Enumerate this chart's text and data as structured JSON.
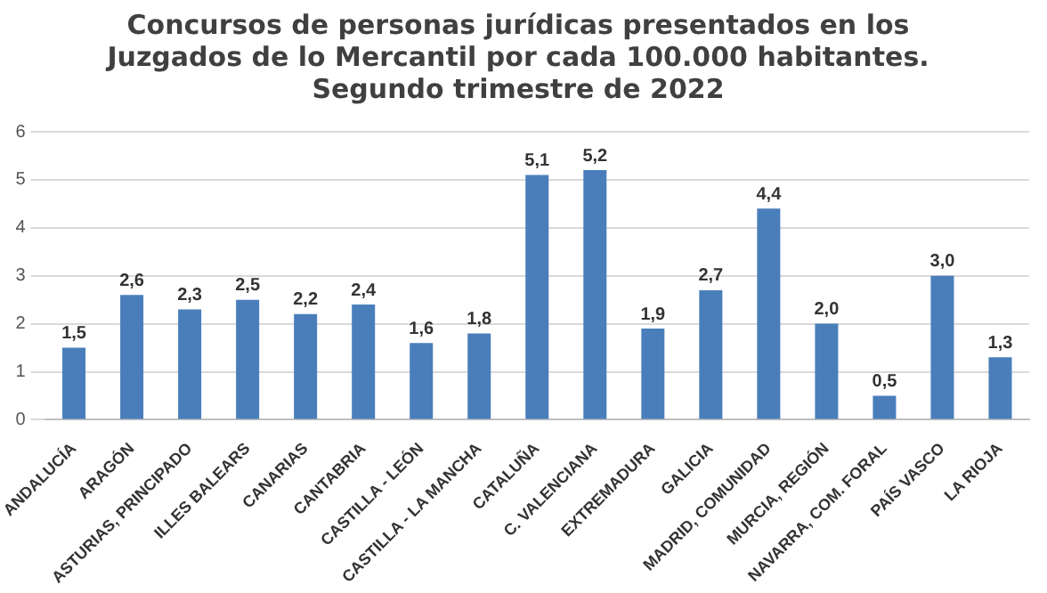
{
  "chart_data": {
    "type": "bar",
    "title": [
      "Concursos de personas jurídicas presentados en los",
      "Juzgados de lo Mercantil por cada 100.000 habitantes.",
      "Segundo trimestre de 2022"
    ],
    "categories": [
      "ANDALUCÍA",
      "ARAGÓN",
      "ASTURIAS, PRINCIPADO",
      "ILLES BALEARS",
      "CANARIAS",
      "CANTABRIA",
      "CASTILLA - LEÓN",
      "CASTILLA - LA MANCHA",
      "CATALUÑA",
      "C. VALENCIANA",
      "EXTREMADURA",
      "GALICIA",
      "MADRID, COMUNIDAD",
      "MURCIA, REGIÓN",
      "NAVARRA, COM. FORAL",
      "PAÍS VASCO",
      "LA RIOJA"
    ],
    "values": [
      1.5,
      2.6,
      2.3,
      2.5,
      2.2,
      2.4,
      1.6,
      1.8,
      5.1,
      5.2,
      1.9,
      2.7,
      4.4,
      2.0,
      0.5,
      3.0,
      1.3
    ],
    "value_labels": [
      "1,5",
      "2,6",
      "2,3",
      "2,5",
      "2,2",
      "2,4",
      "1,6",
      "1,8",
      "5,1",
      "5,2",
      "1,9",
      "2,7",
      "4,4",
      "2,0",
      "0,5",
      "3,0",
      "1,3"
    ],
    "color": "#4a7ebb",
    "ylim": [
      0,
      6
    ],
    "yticks": [
      0,
      1,
      2,
      3,
      4,
      5,
      6
    ],
    "grid": "y",
    "legend": false
  }
}
